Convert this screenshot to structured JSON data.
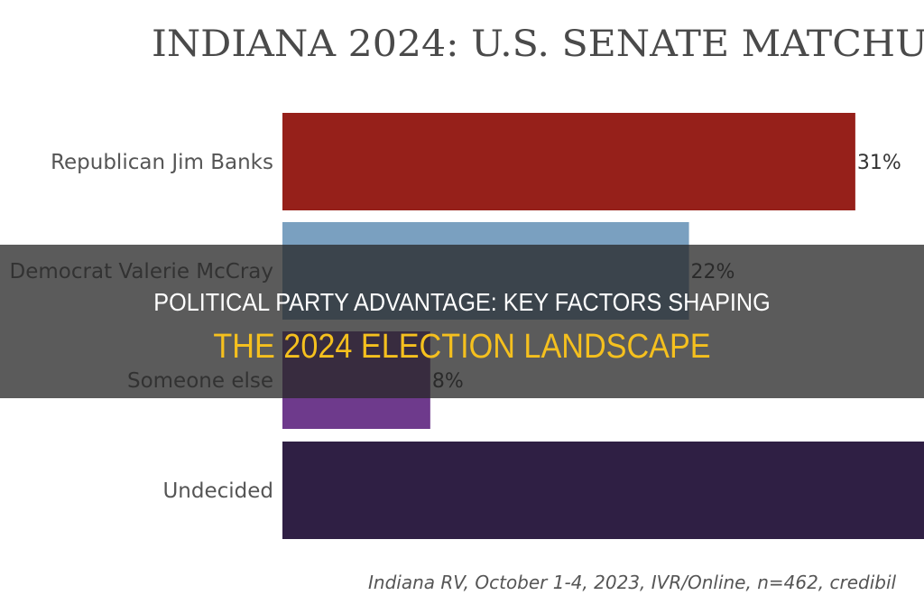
{
  "chart_data": {
    "type": "bar",
    "orientation": "horizontal",
    "title": "INDIANA 2024: U.S. SENATE MATCHU",
    "categories": [
      "Republican Jim Banks",
      "Democrat Valerie McCray",
      "Someone else",
      "Undecided"
    ],
    "values": [
      31,
      22,
      8,
      39
    ],
    "data_labels": [
      "31%",
      "22%",
      "8%",
      ""
    ],
    "colors": [
      "#96201a",
      "#7aa0c0",
      "#6e3a8c",
      "#2f1f44"
    ],
    "unit": "%",
    "grid": false,
    "footnote": "Indiana RV, October 1-4, 2023, IVR/Online, n=462, credibil"
  },
  "banner": {
    "line1": "POLITICAL PARTY ADVANTAGE: KEY FACTORS SHAPING",
    "line2": "THE 2024 ELECTION LANDSCAPE"
  }
}
